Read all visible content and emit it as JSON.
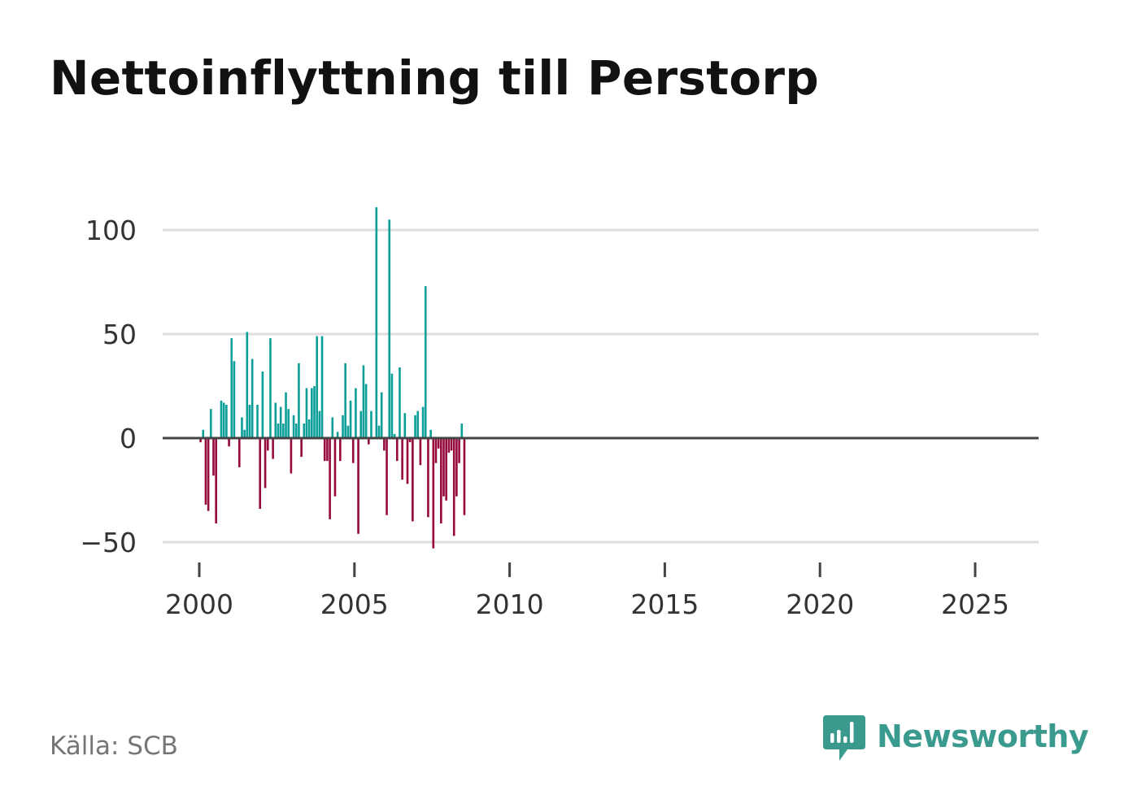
{
  "title": "Nettoinflyttning till Perstorp",
  "source": "Källa: SCB",
  "brand": {
    "name": "Newsworthy",
    "logo_icon": "newsworthy-logo-icon",
    "color": "#3a9a8e"
  },
  "colors": {
    "positive": "#0c9e98",
    "negative": "#960a3e",
    "grid": "#dddddd",
    "zero_line": "#444444"
  },
  "chart_data": {
    "type": "bar",
    "title": "Nettoinflyttning till Perstorp",
    "xlabel": "",
    "ylabel": "",
    "ylim": [
      -60,
      115
    ],
    "xlim": [
      1999.25,
      2027.25
    ],
    "yticks": [
      100,
      50,
      0,
      -50
    ],
    "ytick_labels": [
      "100",
      "50",
      "0",
      "−50"
    ],
    "xticks": [
      2000,
      2005,
      2010,
      2015,
      2020,
      2025
    ],
    "xtick_labels": [
      "2000",
      "2005",
      "2010",
      "2015",
      "2020",
      "2025"
    ],
    "grid": true,
    "frequency": "monthly",
    "x_start": "2000-01",
    "values": [
      -2,
      4,
      -32,
      -35,
      14,
      -18,
      -41,
      0,
      18,
      17,
      16,
      -4,
      48,
      37,
      0,
      -14,
      10,
      4,
      51,
      16,
      38,
      0,
      16,
      -34,
      32,
      -24,
      -6,
      48,
      -10,
      17,
      7,
      15,
      7,
      22,
      14,
      -17,
      11,
      7,
      36,
      -9,
      7,
      24,
      9,
      24,
      25,
      49,
      13,
      49,
      -11,
      -11,
      -39,
      10,
      -28,
      3,
      -11,
      11,
      36,
      6,
      18,
      -12,
      24,
      -46,
      13,
      35,
      26,
      -3,
      13,
      0,
      111,
      6,
      22,
      -6,
      -37,
      105,
      31,
      2,
      -11,
      34,
      -20,
      12,
      -22,
      -2,
      -40,
      11,
      13,
      -13,
      15,
      73,
      -38,
      4,
      -53,
      -12,
      -5,
      -41,
      -28,
      -30,
      -7,
      -6,
      -47,
      -28,
      -12,
      7,
      -37
    ]
  }
}
